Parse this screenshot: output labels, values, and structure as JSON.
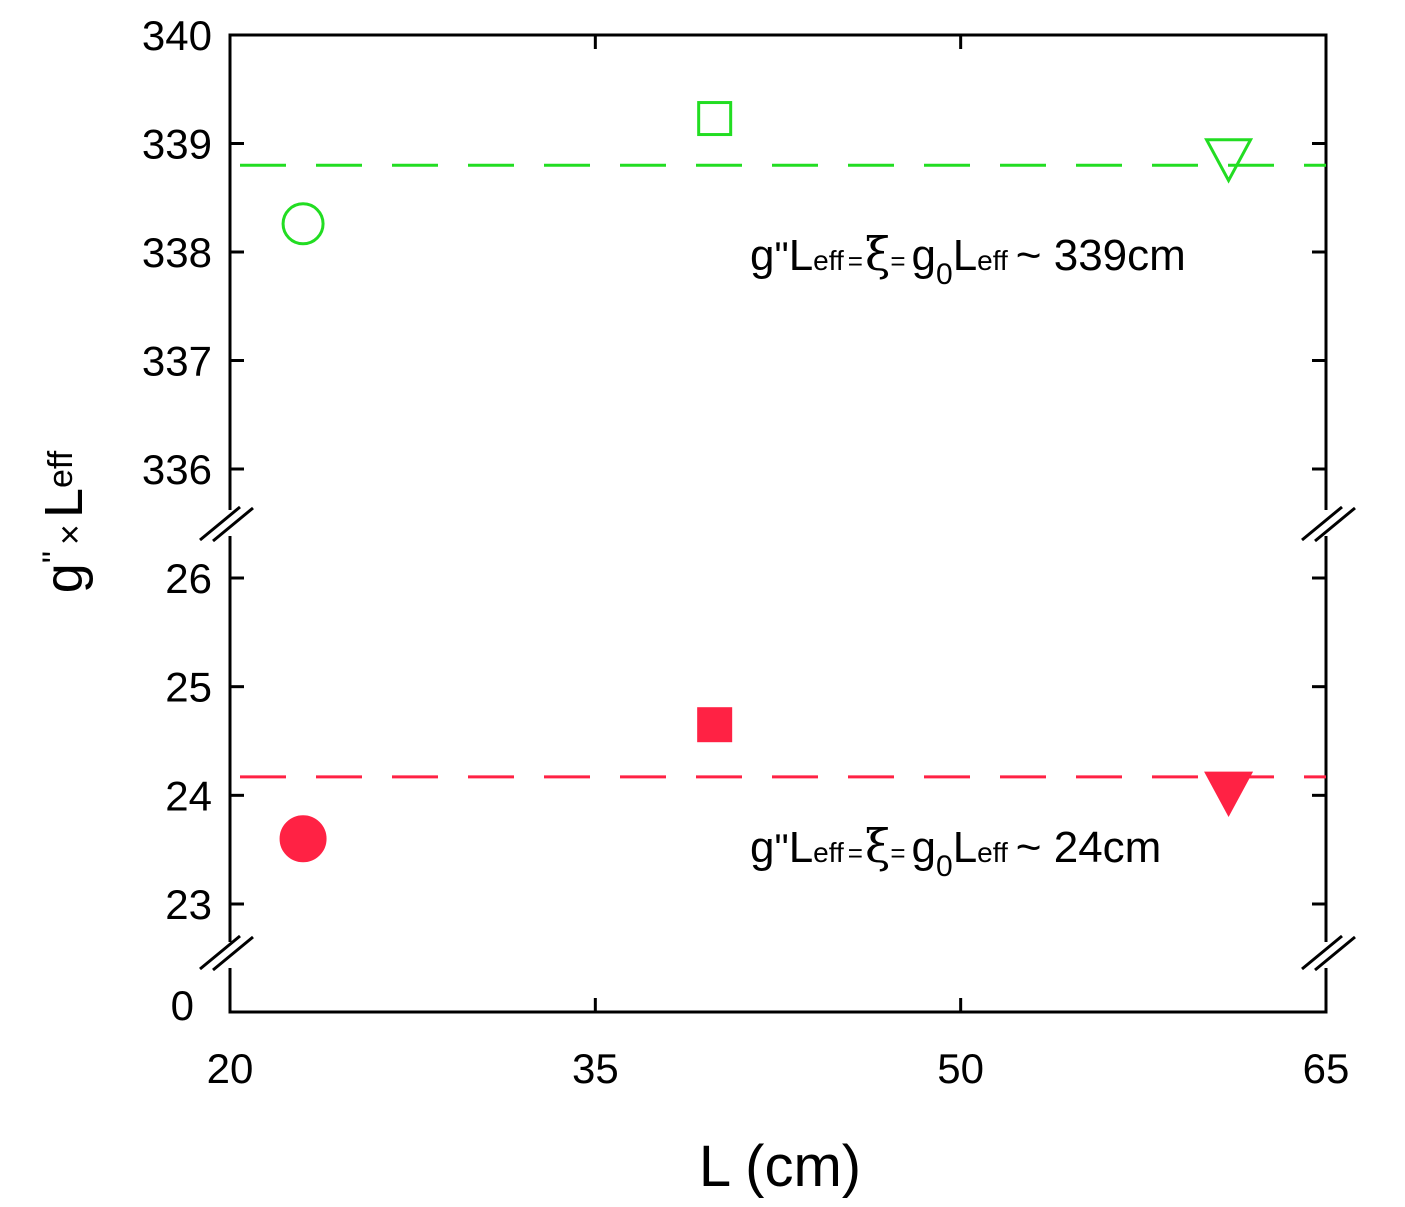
{
  "chart_data": {
    "type": "scatter",
    "xlabel": "L (cm)",
    "ylabel": {
      "main": "g",
      "prime": "\"",
      "times": "×",
      "L": "L",
      "sub": "eff"
    },
    "x_ticks": [
      20,
      35,
      50,
      65
    ],
    "xlim": [
      20,
      65
    ],
    "y_segments": {
      "upper": {
        "range": [
          336,
          340
        ],
        "ticks": [
          336,
          337,
          338,
          339,
          340
        ]
      },
      "lower": {
        "range": [
          23,
          26
        ],
        "ticks": [
          23,
          24,
          25,
          26
        ]
      },
      "bottom": {
        "ticks": [
          0
        ]
      }
    },
    "axis_breaks": true,
    "series": [
      {
        "group": "upper",
        "color": "#22dd22",
        "fill": "none",
        "points": [
          {
            "x": 23,
            "y": 338.26,
            "marker": "circle"
          },
          {
            "x": 39.9,
            "y": 339.23,
            "marker": "square"
          },
          {
            "x": 61,
            "y": 338.88,
            "marker": "triangle-down"
          }
        ],
        "reference_line": {
          "y": 338.8,
          "style": "dashed"
        },
        "annotation": {
          "g": "g",
          "prime": "\"",
          "L": "L",
          "eff": "eff",
          "eq1": "=",
          "xi": "ξ",
          "eq2": "=",
          "g0": "g",
          "zero": "0",
          "L2": "L",
          "eff2": "eff",
          "tail": "~ 339cm"
        }
      },
      {
        "group": "lower",
        "color": "#ff2244",
        "fill": "#ff2244",
        "points": [
          {
            "x": 23,
            "y": 23.6,
            "marker": "circle"
          },
          {
            "x": 39.9,
            "y": 24.65,
            "marker": "square"
          },
          {
            "x": 61,
            "y": 24.05,
            "marker": "triangle-down"
          }
        ],
        "reference_line": {
          "y": 24.17,
          "style": "dashed"
        },
        "annotation": {
          "g": "g",
          "prime": "\"",
          "L": "L",
          "eff": "eff",
          "eq1": "=",
          "xi": "ξ",
          "eq2": "=",
          "g0": "g",
          "zero": "0",
          "L2": "L",
          "eff2": "eff",
          "tail": "~ 24cm"
        }
      }
    ]
  }
}
